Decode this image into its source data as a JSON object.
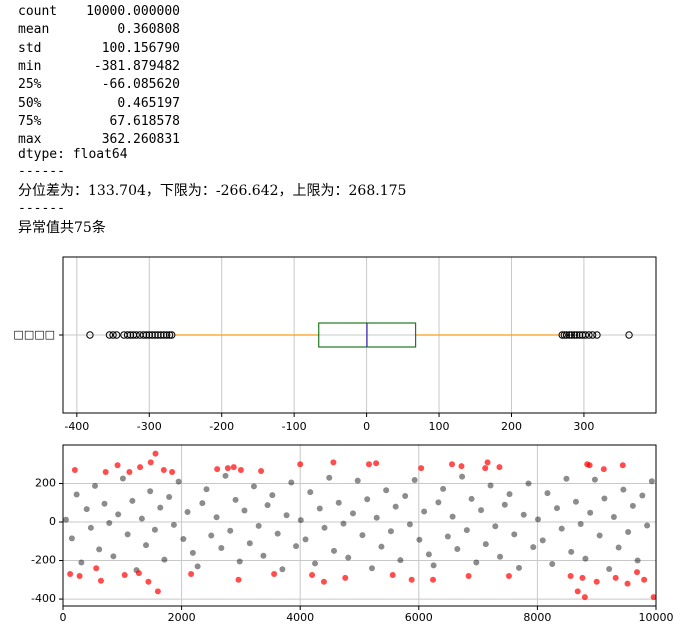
{
  "output": {
    "describe": [
      [
        "count",
        "10000.000000"
      ],
      [
        "mean",
        "0.360808"
      ],
      [
        "std",
        "100.156790"
      ],
      [
        "min",
        "-381.879482"
      ],
      [
        "25%",
        "-66.085620"
      ],
      [
        "50%",
        "0.465197"
      ],
      [
        "75%",
        "67.618578"
      ],
      [
        "max",
        "362.260831"
      ]
    ],
    "dtype": "dtype: float64",
    "sep1": "------",
    "bounds": "分位差为：133.704，下限为：-266.642，上限为：268.175",
    "sep2": "------",
    "outliers": "异常值共75条"
  },
  "chart_data": [
    {
      "type": "box",
      "orientation": "horizontal",
      "categories": [
        "□□□□"
      ],
      "whislo": -266.0,
      "q1": -66.08562,
      "med": 0.465197,
      "q3": 67.618578,
      "whishi": 267.5,
      "fliers": [
        -381.9,
        -355,
        -350,
        -345,
        -335,
        -330,
        -326,
        -322,
        -318,
        -313,
        -308,
        -304,
        -300,
        -296,
        -292,
        -288,
        -284,
        -280,
        -276,
        -272,
        -269,
        270,
        273,
        276,
        280,
        283,
        287,
        290,
        294,
        298,
        302,
        307,
        312,
        318,
        362.3
      ],
      "box_color": "#1f7a1f",
      "median_color": "#3a2fb8",
      "whisker_color": "#ff9a1a",
      "flier_color": "#000000",
      "xlim": [
        -419.1,
        399.5
      ],
      "xticks": [
        -400,
        -300,
        -200,
        -100,
        0,
        100,
        200,
        300
      ],
      "grid": true
    },
    {
      "type": "scatter",
      "xlim": [
        0,
        10000
      ],
      "xticks": [
        0,
        2000,
        4000,
        6000,
        8000,
        10000
      ],
      "ylim": [
        -436,
        400
      ],
      "yticks": [
        -400,
        -200,
        0,
        200
      ],
      "grid": true,
      "series": [
        {
          "color": "#000000",
          "opacity": 0.45,
          "x": [
            50,
            150,
            230,
            310,
            400,
            470,
            540,
            610,
            700,
            780,
            850,
            930,
            1010,
            1090,
            1170,
            1240,
            1330,
            1400,
            1470,
            1550,
            1640,
            1710,
            1790,
            1870,
            1950,
            2030,
            2100,
            2190,
            2270,
            2350,
            2420,
            2500,
            2590,
            2670,
            2740,
            2820,
            2910,
            2980,
            3060,
            3150,
            3220,
            3300,
            3380,
            3450,
            3530,
            3620,
            3700,
            3770,
            3850,
            3930,
            4010,
            4090,
            4170,
            4250,
            4330,
            4410,
            4490,
            4570,
            4650,
            4730,
            4810,
            4890,
            4970,
            5050,
            5130,
            5210,
            5290,
            5370,
            5450,
            5530,
            5610,
            5690,
            5770,
            5850,
            5930,
            6010,
            6090,
            6170,
            6250,
            6330,
            6410,
            6490,
            6570,
            6650,
            6730,
            6810,
            6890,
            6970,
            7050,
            7130,
            7210,
            7290,
            7370,
            7450,
            7530,
            7610,
            7690,
            7770,
            7850,
            7930,
            8010,
            8090,
            8170,
            8250,
            8330,
            8410,
            8490,
            8570,
            8650,
            8730,
            8810,
            8890,
            8970,
            9050,
            9130,
            9210,
            9290,
            9370,
            9450,
            9530,
            9610,
            9690,
            9770,
            9850,
            9930
          ],
          "values": [
            12,
            -85,
            143,
            -210,
            67,
            -30,
            188,
            -142,
            95,
            -5,
            -178,
            40,
            226,
            -64,
            110,
            -250,
            18,
            -120,
            160,
            -40,
            75,
            -195,
            130,
            -15,
            210,
            -88,
            52,
            -160,
            -230,
            98,
            170,
            -70,
            25,
            -135,
            240,
            -45,
            115,
            -205,
            60,
            -110,
            185,
            -20,
            -175,
            88,
            140,
            -60,
            -245,
            35,
            205,
            -125,
            10,
            -90,
            155,
            -215,
            70,
            -30,
            230,
            -150,
            100,
            -8,
            -185,
            45,
            215,
            -68,
            118,
            -240,
            22,
            -128,
            165,
            -48,
            80,
            -198,
            135,
            -12,
            218,
            -92,
            55,
            -168,
            -225,
            102,
            172,
            -75,
            28,
            -140,
            236,
            -42,
            120,
            -210,
            62,
            -115,
            190,
            -22,
            -180,
            90,
            145,
            -64,
            -238,
            38,
            200,
            -130,
            14,
            -95,
            150,
            -218,
            72,
            -34,
            225,
            -155,
            105,
            -10,
            -190,
            48,
            220,
            -70,
            122,
            -244,
            26,
            -132,
            168,
            -52,
            84,
            -200,
            138,
            -18,
            212
          ]
        },
        {
          "color": "#ff0000",
          "opacity": 0.7,
          "x": [
            120,
            200,
            280,
            560,
            640,
            720,
            920,
            1040,
            1120,
            1280,
            1300,
            1440,
            1480,
            1560,
            1600,
            1700,
            1840,
            2160,
            2600,
            2780,
            2880,
            2960,
            3000,
            3340,
            3560,
            4000,
            4200,
            4400,
            4560,
            4760,
            5160,
            5280,
            5560,
            5880,
            6040,
            6240,
            6560,
            6720,
            6840,
            7120,
            7160,
            7360,
            7520,
            8560,
            8680,
            8760,
            8800,
            8840,
            8880,
            9000,
            9120,
            9320,
            9440,
            9520,
            9680,
            9800,
            9960
          ],
          "values": [
            -270,
            270,
            -280,
            -240,
            -305,
            260,
            295,
            -275,
            260,
            -265,
            285,
            -310,
            310,
            355,
            -360,
            270,
            260,
            -270,
            275,
            280,
            285,
            -300,
            270,
            265,
            -270,
            300,
            -275,
            -310,
            310,
            -290,
            300,
            305,
            -275,
            -300,
            280,
            -300,
            300,
            290,
            -280,
            280,
            310,
            285,
            -280,
            -280,
            -360,
            -290,
            -390,
            300,
            295,
            -310,
            275,
            -290,
            295,
            -320,
            -260,
            -300,
            -390
          ]
        }
      ]
    }
  ]
}
